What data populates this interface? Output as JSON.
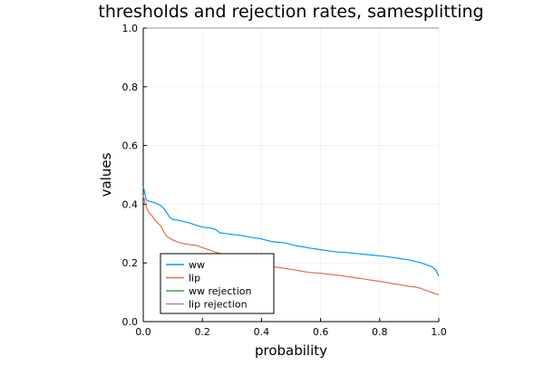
{
  "chart_data": {
    "type": "line",
    "title": "thresholds and rejection rates, samesplitting",
    "xlabel": "probability",
    "ylabel": "values",
    "xlim": [
      0.0,
      1.0
    ],
    "ylim": [
      0.0,
      1.0
    ],
    "xticks": [
      0.0,
      0.2,
      0.4,
      0.6,
      0.8,
      1.0
    ],
    "xtick_labels": [
      "0.0",
      "0.2",
      "0.4",
      "0.6",
      "0.8",
      "1.0"
    ],
    "yticks": [
      0.0,
      0.2,
      0.4,
      0.6,
      0.8,
      1.0
    ],
    "ytick_labels": [
      "0.0",
      "0.2",
      "0.4",
      "0.6",
      "0.8",
      "1.0"
    ],
    "grid": true,
    "legend_position": "bottom-left",
    "series": [
      {
        "name": "ww",
        "color": "#009AFA",
        "x": [
          0.0,
          0.005,
          0.01,
          0.02,
          0.04,
          0.06,
          0.07,
          0.08,
          0.09,
          0.1,
          0.12,
          0.14,
          0.16,
          0.18,
          0.2,
          0.22,
          0.24,
          0.25,
          0.26,
          0.28,
          0.3,
          0.32,
          0.34,
          0.36,
          0.38,
          0.4,
          0.42,
          0.44,
          0.46,
          0.48,
          0.5,
          0.52,
          0.54,
          0.56,
          0.58,
          0.6,
          0.62,
          0.64,
          0.66,
          0.68,
          0.7,
          0.72,
          0.74,
          0.76,
          0.78,
          0.8,
          0.82,
          0.84,
          0.86,
          0.88,
          0.9,
          0.92,
          0.94,
          0.96,
          0.98,
          0.99,
          1.0
        ],
        "y": [
          0.46,
          0.44,
          0.415,
          0.41,
          0.405,
          0.395,
          0.385,
          0.37,
          0.355,
          0.348,
          0.345,
          0.34,
          0.335,
          0.328,
          0.322,
          0.32,
          0.316,
          0.31,
          0.302,
          0.3,
          0.297,
          0.295,
          0.292,
          0.288,
          0.285,
          0.282,
          0.276,
          0.272,
          0.27,
          0.268,
          0.263,
          0.258,
          0.255,
          0.251,
          0.248,
          0.245,
          0.242,
          0.239,
          0.237,
          0.236,
          0.234,
          0.232,
          0.23,
          0.228,
          0.226,
          0.224,
          0.222,
          0.219,
          0.216,
          0.213,
          0.21,
          0.205,
          0.2,
          0.193,
          0.185,
          0.175,
          0.155
        ]
      },
      {
        "name": "lip",
        "color": "#E26F46",
        "x": [
          0.0,
          0.005,
          0.01,
          0.02,
          0.03,
          0.04,
          0.05,
          0.06,
          0.07,
          0.08,
          0.1,
          0.12,
          0.14,
          0.16,
          0.18,
          0.2,
          0.22,
          0.24,
          0.26,
          0.28,
          0.3,
          0.32,
          0.34,
          0.36,
          0.38,
          0.4,
          0.42,
          0.44,
          0.46,
          0.48,
          0.5,
          0.52,
          0.54,
          0.56,
          0.58,
          0.6,
          0.62,
          0.64,
          0.66,
          0.68,
          0.7,
          0.72,
          0.74,
          0.76,
          0.78,
          0.8,
          0.82,
          0.84,
          0.86,
          0.88,
          0.9,
          0.92,
          0.94,
          0.96,
          0.98,
          1.0
        ],
        "y": [
          0.43,
          0.41,
          0.39,
          0.37,
          0.36,
          0.345,
          0.335,
          0.325,
          0.305,
          0.29,
          0.278,
          0.27,
          0.265,
          0.262,
          0.26,
          0.252,
          0.245,
          0.238,
          0.232,
          0.225,
          0.215,
          0.21,
          0.205,
          0.2,
          0.197,
          0.193,
          0.19,
          0.187,
          0.184,
          0.181,
          0.178,
          0.175,
          0.171,
          0.168,
          0.166,
          0.165,
          0.162,
          0.16,
          0.158,
          0.155,
          0.152,
          0.149,
          0.146,
          0.143,
          0.14,
          0.137,
          0.134,
          0.13,
          0.127,
          0.124,
          0.12,
          0.118,
          0.113,
          0.105,
          0.098,
          0.092
        ]
      },
      {
        "name": "ww rejection",
        "color": "#3EA44E",
        "x": [],
        "y": []
      },
      {
        "name": "lip rejection",
        "color": "#C371D2",
        "x": [],
        "y": []
      }
    ]
  }
}
